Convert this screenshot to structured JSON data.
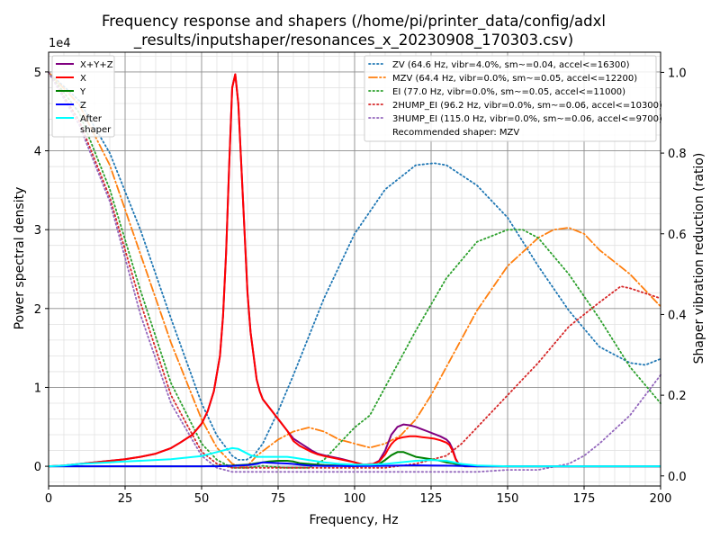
{
  "chart_data": {
    "type": "line",
    "title_lines": [
      "Frequency response and shapers (/home/pi/printer_data/config/adxl",
      "_results/inputshaper/resonances_x_20230908_170303.csv)"
    ],
    "xlabel": "Frequency, Hz",
    "ylabel": "Power spectral density",
    "y2label": "Shaper vibration reduction (ratio)",
    "y_offset_text": "1e4",
    "xlim": [
      0,
      200
    ],
    "ylim": [
      -2500,
      52500
    ],
    "y_scale_factor": 10000,
    "y2lim": [
      -0.025,
      1.05
    ],
    "x_ticks": [
      0,
      25,
      50,
      75,
      100,
      125,
      150,
      175,
      200
    ],
    "x_tick_labels": [
      "0",
      "25",
      "50",
      "75",
      "100",
      "125",
      "150",
      "175",
      "200"
    ],
    "y_ticks": [
      0,
      10000,
      20000,
      30000,
      40000,
      50000
    ],
    "y_tick_labels": [
      "0",
      "1",
      "2",
      "3",
      "4",
      "5"
    ],
    "y2_ticks": [
      0.0,
      0.2,
      0.4,
      0.6,
      0.8,
      1.0
    ],
    "y2_tick_labels": [
      "0.0",
      "0.2",
      "0.4",
      "0.6",
      "0.8",
      "1.0"
    ],
    "grid": true,
    "legend_left": {
      "placement": "top-left",
      "entries": [
        {
          "label": "X+Y+Z",
          "color": "#800080"
        },
        {
          "label": "X",
          "color": "#ff0000"
        },
        {
          "label": "Y",
          "color": "#008000"
        },
        {
          "label": "Z",
          "color": "#0000ff"
        },
        {
          "label": "After\nshaper",
          "color": "#00ffff"
        }
      ]
    },
    "legend_right": {
      "placement": "top-right",
      "entries": [
        {
          "label": "ZV (64.6 Hz, vibr=4.0%, sm~=0.04, accel<=16300)",
          "color": "#1f77b4",
          "style": "dotted"
        },
        {
          "label": "MZV (64.4 Hz, vibr=0.0%, sm~=0.05, accel<=12200)",
          "color": "#ff7f0e",
          "style": "dashdot"
        },
        {
          "label": "EI (77.0 Hz, vibr=0.0%, sm~=0.05, accel<=11000)",
          "color": "#2ca02c",
          "style": "dotted"
        },
        {
          "label": "2HUMP_EI (96.2 Hz, vibr=0.0%, sm~=0.06, accel<=10300)",
          "color": "#d62728",
          "style": "dotted"
        },
        {
          "label": "3HUMP_EI (115.0 Hz, vibr=0.0%, sm~=0.06, accel<=9700)",
          "color": "#9467bd",
          "style": "dotted"
        },
        {
          "label": "Recommended shaper: MZV",
          "color": "",
          "style": "none"
        }
      ]
    },
    "psd_series": [
      {
        "name": "X+Y+Z",
        "color": "#800080",
        "x": [
          0,
          5,
          10,
          15,
          20,
          25,
          30,
          35,
          40,
          43,
          47,
          50,
          52,
          54,
          56,
          57,
          58,
          59,
          60,
          61,
          62,
          63,
          64,
          65,
          66,
          67,
          68,
          69,
          70,
          71,
          72,
          74,
          76,
          78,
          80,
          82,
          84,
          86,
          88,
          90,
          95,
          100,
          103,
          106,
          108,
          110,
          111,
          112,
          113,
          114,
          116,
          118,
          120,
          122,
          124,
          126,
          128,
          130,
          131,
          132,
          133,
          134,
          135,
          136,
          140,
          150,
          160,
          170,
          180,
          190,
          200
        ],
        "y": [
          0,
          100,
          300,
          500,
          700,
          900,
          1200,
          1600,
          2300,
          3000,
          4000,
          5400,
          7000,
          9500,
          14000,
          19000,
          27000,
          38000,
          48000,
          49700,
          46000,
          38000,
          30000,
          22000,
          17000,
          14000,
          11000,
          9500,
          8500,
          8000,
          7500,
          6500,
          5500,
          4500,
          3500,
          3000,
          2500,
          2000,
          1600,
          1400,
          1000,
          500,
          200,
          300,
          700,
          2000,
          3000,
          4000,
          4500,
          5000,
          5300,
          5200,
          5000,
          4700,
          4400,
          4100,
          3800,
          3400,
          3000,
          2200,
          1000,
          300,
          100,
          0,
          0,
          0,
          0,
          0,
          0,
          0,
          0
        ]
      },
      {
        "name": "X",
        "color": "#ff0000",
        "x": [
          0,
          5,
          10,
          15,
          20,
          25,
          30,
          35,
          40,
          43,
          47,
          50,
          52,
          54,
          56,
          57,
          58,
          59,
          60,
          61,
          62,
          63,
          64,
          65,
          66,
          67,
          68,
          69,
          70,
          71,
          72,
          74,
          76,
          78,
          80,
          82,
          84,
          86,
          88,
          90,
          95,
          100,
          103,
          106,
          108,
          110,
          111,
          112,
          113,
          114,
          116,
          118,
          120,
          122,
          124,
          126,
          128,
          130,
          131,
          132,
          133,
          134,
          135,
          136,
          140,
          150,
          160,
          170,
          180,
          190,
          200
        ],
        "y": [
          0,
          100,
          300,
          500,
          700,
          900,
          1200,
          1600,
          2300,
          3000,
          4000,
          5400,
          7000,
          9500,
          14000,
          19000,
          27000,
          38000,
          48000,
          49700,
          46000,
          38000,
          30000,
          22000,
          17000,
          14000,
          11000,
          9500,
          8500,
          8000,
          7500,
          6500,
          5500,
          4500,
          3200,
          2600,
          2200,
          1800,
          1500,
          1300,
          900,
          500,
          200,
          300,
          600,
          1500,
          2200,
          2800,
          3200,
          3500,
          3700,
          3800,
          3800,
          3700,
          3600,
          3500,
          3300,
          3000,
          2700,
          2000,
          900,
          300,
          100,
          0,
          0,
          0,
          0,
          0,
          0,
          0,
          0
        ]
      },
      {
        "name": "Y",
        "color": "#008000",
        "x": [
          0,
          50,
          55,
          60,
          65,
          68,
          70,
          72,
          75,
          78,
          80,
          82,
          85,
          90,
          95,
          100,
          105,
          108,
          110,
          112,
          114,
          116,
          118,
          120,
          125,
          128,
          130,
          132,
          134,
          136,
          140,
          200
        ],
        "y": [
          0,
          0,
          50,
          100,
          200,
          400,
          500,
          600,
          700,
          700,
          600,
          400,
          300,
          150,
          80,
          50,
          100,
          300,
          800,
          1400,
          1800,
          1800,
          1500,
          1200,
          900,
          700,
          500,
          400,
          200,
          50,
          0,
          0
        ]
      },
      {
        "name": "Z",
        "color": "#0000ff",
        "x": [
          0,
          55,
          60,
          65,
          68,
          70,
          72,
          75,
          78,
          80,
          82,
          85,
          90,
          95,
          100,
          105,
          110,
          115,
          120,
          125,
          130,
          135,
          140,
          200
        ],
        "y": [
          0,
          0,
          50,
          150,
          300,
          500,
          450,
          400,
          350,
          300,
          200,
          100,
          50,
          30,
          20,
          30,
          60,
          100,
          120,
          100,
          80,
          50,
          0,
          0
        ]
      },
      {
        "name": "After shaper",
        "color": "#00ffff",
        "x": [
          0,
          5,
          10,
          15,
          20,
          25,
          30,
          35,
          40,
          45,
          50,
          55,
          58,
          60,
          62,
          64,
          66,
          68,
          70,
          72,
          75,
          78,
          80,
          85,
          90,
          95,
          100,
          105,
          110,
          115,
          120,
          125,
          130,
          135,
          140,
          150,
          200
        ],
        "y": [
          0,
          100,
          300,
          400,
          500,
          600,
          700,
          800,
          900,
          1100,
          1300,
          1800,
          2100,
          2300,
          2200,
          1800,
          1400,
          1200,
          1200,
          1200,
          1200,
          1200,
          1100,
          800,
          500,
          300,
          200,
          200,
          300,
          500,
          700,
          800,
          700,
          300,
          100,
          0,
          0
        ]
      }
    ],
    "shaper_series": [
      {
        "name": "ZV",
        "color": "#1f77b4",
        "style": "dotted",
        "x": [
          0,
          10,
          20,
          30,
          40,
          50,
          55,
          60,
          62,
          64.6,
          67,
          70,
          75,
          80,
          90,
          100,
          110,
          120,
          126,
          130,
          140,
          150,
          160,
          170,
          180,
          190,
          195,
          200
        ],
        "y": [
          1.0,
          0.93,
          0.8,
          0.61,
          0.39,
          0.18,
          0.1,
          0.05,
          0.04,
          0.04,
          0.05,
          0.08,
          0.16,
          0.25,
          0.44,
          0.6,
          0.71,
          0.77,
          0.775,
          0.77,
          0.72,
          0.64,
          0.52,
          0.41,
          0.32,
          0.28,
          0.275,
          0.29
        ]
      },
      {
        "name": "MZV",
        "color": "#ff7f0e",
        "style": "dashdot",
        "x": [
          0,
          10,
          20,
          30,
          40,
          50,
          55,
          60,
          64.4,
          68,
          75,
          80,
          85,
          90,
          95,
          100,
          105,
          110,
          115,
          120,
          125,
          130,
          140,
          150,
          160,
          165,
          170,
          175,
          180,
          190,
          200
        ],
        "y": [
          1.0,
          0.92,
          0.77,
          0.55,
          0.33,
          0.14,
          0.07,
          0.03,
          0.02,
          0.05,
          0.09,
          0.11,
          0.12,
          0.11,
          0.09,
          0.08,
          0.07,
          0.08,
          0.1,
          0.14,
          0.2,
          0.27,
          0.41,
          0.52,
          0.59,
          0.61,
          0.615,
          0.6,
          0.56,
          0.5,
          0.42
        ]
      },
      {
        "name": "EI",
        "color": "#2ca02c",
        "style": "dotted",
        "x": [
          0,
          10,
          20,
          30,
          40,
          50,
          55,
          60,
          65,
          70,
          77,
          85,
          90,
          95,
          100,
          105,
          110,
          120,
          130,
          140,
          150,
          155,
          160,
          170,
          180,
          190,
          200
        ],
        "y": [
          1.0,
          0.9,
          0.71,
          0.46,
          0.23,
          0.08,
          0.04,
          0.02,
          0.02,
          0.025,
          0.02,
          0.02,
          0.04,
          0.08,
          0.12,
          0.15,
          0.22,
          0.36,
          0.49,
          0.58,
          0.61,
          0.61,
          0.59,
          0.5,
          0.39,
          0.27,
          0.18
        ]
      },
      {
        "name": "2HUMP_EI",
        "color": "#d62728",
        "style": "dotted",
        "x": [
          0,
          10,
          20,
          30,
          40,
          50,
          55,
          60,
          65,
          70,
          80,
          96.2,
          110,
          120,
          130,
          135,
          140,
          150,
          160,
          170,
          180,
          187,
          190,
          200
        ],
        "y": [
          1.0,
          0.88,
          0.69,
          0.43,
          0.2,
          0.06,
          0.03,
          0.02,
          0.02,
          0.02,
          0.02,
          0.02,
          0.02,
          0.03,
          0.05,
          0.08,
          0.12,
          0.2,
          0.28,
          0.37,
          0.43,
          0.47,
          0.465,
          0.44
        ]
      },
      {
        "name": "3HUMP_EI",
        "color": "#9467bd",
        "style": "dotted",
        "x": [
          0,
          10,
          20,
          30,
          40,
          50,
          55,
          60,
          70,
          80,
          100,
          115,
          130,
          140,
          150,
          160,
          170,
          175,
          180,
          190,
          200
        ],
        "y": [
          1.0,
          0.87,
          0.68,
          0.4,
          0.18,
          0.05,
          0.02,
          0.01,
          0.01,
          0.01,
          0.01,
          0.01,
          0.01,
          0.01,
          0.015,
          0.015,
          0.03,
          0.05,
          0.08,
          0.15,
          0.25
        ]
      }
    ]
  }
}
